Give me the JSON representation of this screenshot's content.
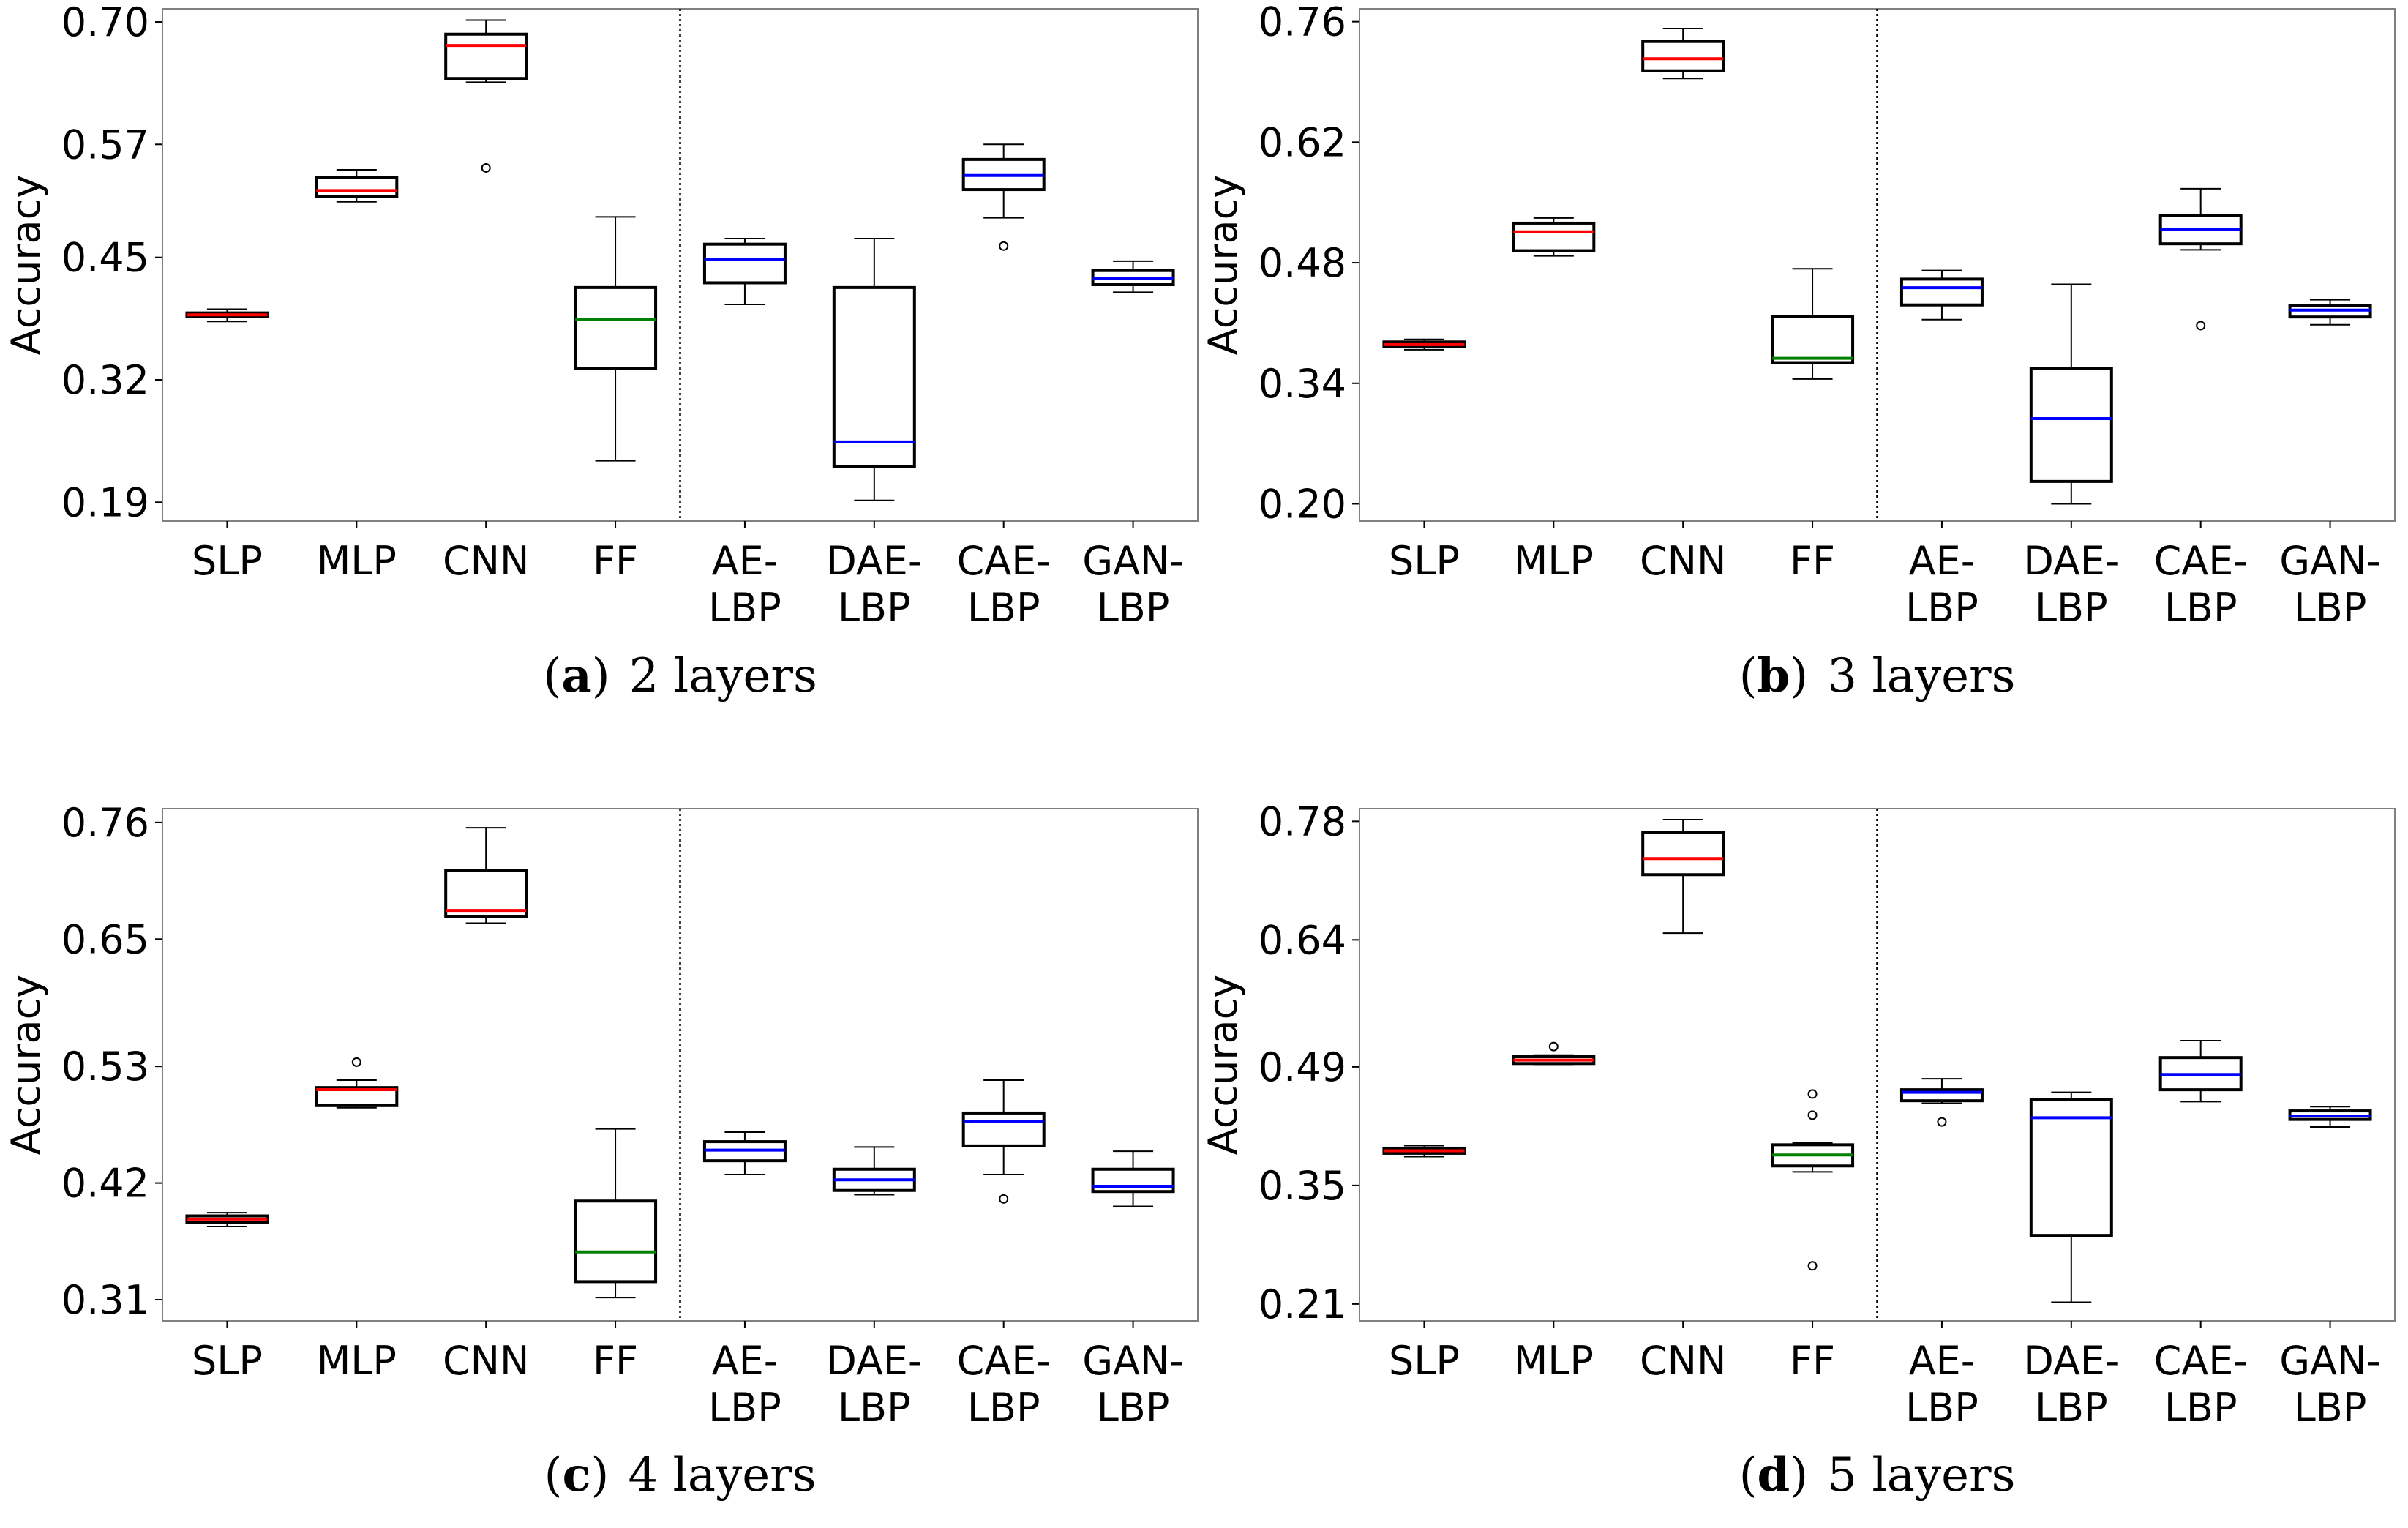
{
  "figure": {
    "categories": [
      "SLP",
      "MLP",
      "CNN",
      "FF",
      "AE-LBP",
      "DAE-LBP",
      "CAE-LBP",
      "GAN-LBP"
    ],
    "colors": {
      "red": "#ff0000",
      "green": "#008000",
      "blue": "#0000ff",
      "box": "#000000",
      "frame": "#808080",
      "divider": "#000000"
    }
  },
  "chart_data": [
    {
      "type": "box",
      "panel": "a",
      "caption_label": "a",
      "caption_text": "2 layers",
      "ylabel": "Accuracy",
      "ylim": [
        0.17,
        0.714
      ],
      "yticks": [
        0.19,
        0.32,
        0.45,
        0.57,
        0.7
      ],
      "ytick_labels": [
        "0.19",
        "0.32",
        "0.45",
        "0.57",
        "0.70"
      ],
      "xtick_labels": [
        [
          "SLP"
        ],
        [
          "MLP"
        ],
        [
          "CNN"
        ],
        [
          "FF"
        ],
        [
          "AE-",
          "LBP"
        ],
        [
          "DAE-",
          "LBP"
        ],
        [
          "CAE-",
          "LBP"
        ],
        [
          "GAN-",
          "LBP"
        ]
      ],
      "series": [
        {
          "name": "SLP",
          "min": 0.382,
          "q1": 0.387,
          "median": 0.389,
          "q3": 0.391,
          "max": 0.395,
          "median_color": "red",
          "outliers": []
        },
        {
          "name": "MLP",
          "min": 0.509,
          "q1": 0.515,
          "median": 0.521,
          "q3": 0.535,
          "max": 0.543,
          "median_color": "red",
          "outliers": []
        },
        {
          "name": "CNN",
          "min": 0.636,
          "q1": 0.64,
          "median": 0.675,
          "q3": 0.687,
          "max": 0.702,
          "median_color": "red",
          "outliers": [
            0.545
          ]
        },
        {
          "name": "FF",
          "min": 0.234,
          "q1": 0.332,
          "median": 0.384,
          "q3": 0.418,
          "max": 0.493,
          "median_color": "green",
          "outliers": []
        },
        {
          "name": "AE-LBP",
          "min": 0.4,
          "q1": 0.423,
          "median": 0.448,
          "q3": 0.464,
          "max": 0.47,
          "median_color": "blue",
          "outliers": []
        },
        {
          "name": "DAE-LBP",
          "min": 0.192,
          "q1": 0.228,
          "median": 0.254,
          "q3": 0.418,
          "max": 0.47,
          "median_color": "blue",
          "outliers": []
        },
        {
          "name": "CAE-LBP",
          "min": 0.492,
          "q1": 0.522,
          "median": 0.537,
          "q3": 0.554,
          "max": 0.57,
          "median_color": "blue",
          "outliers": [
            0.462
          ]
        },
        {
          "name": "GAN-LBP",
          "min": 0.413,
          "q1": 0.421,
          "median": 0.428,
          "q3": 0.436,
          "max": 0.446,
          "median_color": "blue",
          "outliers": []
        }
      ]
    },
    {
      "type": "box",
      "panel": "b",
      "caption_label": "b",
      "caption_text": "3 layers",
      "ylabel": "Accuracy",
      "ylim": [
        0.18,
        0.775
      ],
      "yticks": [
        0.2,
        0.34,
        0.48,
        0.62,
        0.76
      ],
      "ytick_labels": [
        "0.20",
        "0.34",
        "0.48",
        "0.62",
        "0.76"
      ],
      "xtick_labels": [
        [
          "SLP"
        ],
        [
          "MLP"
        ],
        [
          "CNN"
        ],
        [
          "FF"
        ],
        [
          "AE-",
          "LBP"
        ],
        [
          "DAE-",
          "LBP"
        ],
        [
          "CAE-",
          "LBP"
        ],
        [
          "GAN-",
          "LBP"
        ]
      ],
      "series": [
        {
          "name": "SLP",
          "min": 0.379,
          "q1": 0.383,
          "median": 0.385,
          "q3": 0.388,
          "max": 0.391,
          "median_color": "red",
          "outliers": []
        },
        {
          "name": "MLP",
          "min": 0.488,
          "q1": 0.494,
          "median": 0.516,
          "q3": 0.526,
          "max": 0.532,
          "median_color": "red",
          "outliers": []
        },
        {
          "name": "CNN",
          "min": 0.694,
          "q1": 0.703,
          "median": 0.717,
          "q3": 0.737,
          "max": 0.752,
          "median_color": "red",
          "outliers": []
        },
        {
          "name": "FF",
          "min": 0.345,
          "q1": 0.364,
          "median": 0.369,
          "q3": 0.418,
          "max": 0.473,
          "median_color": "green",
          "outliers": []
        },
        {
          "name": "AE-LBP",
          "min": 0.414,
          "q1": 0.431,
          "median": 0.451,
          "q3": 0.461,
          "max": 0.471,
          "median_color": "blue",
          "outliers": []
        },
        {
          "name": "DAE-LBP",
          "min": 0.2,
          "q1": 0.226,
          "median": 0.299,
          "q3": 0.357,
          "max": 0.455,
          "median_color": "blue",
          "outliers": []
        },
        {
          "name": "CAE-LBP",
          "min": 0.495,
          "q1": 0.502,
          "median": 0.519,
          "q3": 0.535,
          "max": 0.566,
          "median_color": "blue",
          "outliers": [
            0.407
          ]
        },
        {
          "name": "GAN-LBP",
          "min": 0.408,
          "q1": 0.417,
          "median": 0.425,
          "q3": 0.43,
          "max": 0.437,
          "median_color": "blue",
          "outliers": []
        }
      ]
    },
    {
      "type": "box",
      "panel": "c",
      "caption_label": "c",
      "caption_text": "4 layers",
      "ylabel": "Accuracy",
      "ylim": [
        0.29,
        0.773
      ],
      "yticks": [
        0.31,
        0.42,
        0.53,
        0.65,
        0.76
      ],
      "ytick_labels": [
        "0.31",
        "0.42",
        "0.53",
        "0.65",
        "0.76"
      ],
      "xtick_labels": [
        [
          "SLP"
        ],
        [
          "MLP"
        ],
        [
          "CNN"
        ],
        [
          "FF"
        ],
        [
          "AE-",
          "LBP"
        ],
        [
          "DAE-",
          "LBP"
        ],
        [
          "CAE-",
          "LBP"
        ],
        [
          "GAN-",
          "LBP"
        ]
      ],
      "series": [
        {
          "name": "SLP",
          "min": 0.379,
          "q1": 0.383,
          "median": 0.386,
          "q3": 0.389,
          "max": 0.392,
          "median_color": "red",
          "outliers": []
        },
        {
          "name": "MLP",
          "min": 0.491,
          "q1": 0.493,
          "median": 0.508,
          "q3": 0.51,
          "max": 0.517,
          "median_color": "red",
          "outliers": [
            0.534
          ]
        },
        {
          "name": "CNN",
          "min": 0.665,
          "q1": 0.671,
          "median": 0.677,
          "q3": 0.715,
          "max": 0.755,
          "median_color": "red",
          "outliers": []
        },
        {
          "name": "FF",
          "min": 0.312,
          "q1": 0.327,
          "median": 0.355,
          "q3": 0.403,
          "max": 0.471,
          "median_color": "green",
          "outliers": []
        },
        {
          "name": "AE-LBP",
          "min": 0.428,
          "q1": 0.441,
          "median": 0.451,
          "q3": 0.459,
          "max": 0.468,
          "median_color": "blue",
          "outliers": []
        },
        {
          "name": "DAE-LBP",
          "min": 0.409,
          "q1": 0.413,
          "median": 0.423,
          "q3": 0.433,
          "max": 0.454,
          "median_color": "blue",
          "outliers": []
        },
        {
          "name": "CAE-LBP",
          "min": 0.428,
          "q1": 0.455,
          "median": 0.478,
          "q3": 0.486,
          "max": 0.517,
          "median_color": "blue",
          "outliers": [
            0.405
          ]
        },
        {
          "name": "GAN-LBP",
          "min": 0.398,
          "q1": 0.412,
          "median": 0.417,
          "q3": 0.433,
          "max": 0.45,
          "median_color": "blue",
          "outliers": []
        }
      ]
    },
    {
      "type": "box",
      "panel": "d",
      "caption_label": "d",
      "caption_text": "5 layers",
      "ylabel": "Accuracy",
      "ylim": [
        0.19,
        0.795
      ],
      "yticks": [
        0.21,
        0.35,
        0.49,
        0.64,
        0.78
      ],
      "ytick_labels": [
        "0.21",
        "0.35",
        "0.49",
        "0.64",
        "0.78"
      ],
      "xtick_labels": [
        [
          "SLP"
        ],
        [
          "MLP"
        ],
        [
          "CNN"
        ],
        [
          "FF"
        ],
        [
          "AE-",
          "LBP"
        ],
        [
          "DAE-",
          "LBP"
        ],
        [
          "CAE-",
          "LBP"
        ],
        [
          "GAN-",
          "LBP"
        ]
      ],
      "series": [
        {
          "name": "SLP",
          "min": 0.384,
          "q1": 0.388,
          "median": 0.391,
          "q3": 0.394,
          "max": 0.397,
          "median_color": "red",
          "outliers": []
        },
        {
          "name": "MLP",
          "min": 0.493,
          "q1": 0.494,
          "median": 0.498,
          "q3": 0.502,
          "max": 0.504,
          "median_color": "red",
          "outliers": [
            0.514
          ]
        },
        {
          "name": "CNN",
          "min": 0.648,
          "q1": 0.717,
          "median": 0.736,
          "q3": 0.767,
          "max": 0.782,
          "median_color": "red",
          "outliers": []
        },
        {
          "name": "FF",
          "min": 0.366,
          "q1": 0.373,
          "median": 0.386,
          "q3": 0.398,
          "max": 0.4,
          "median_color": "green",
          "outliers": [
            0.255,
            0.433,
            0.458
          ]
        },
        {
          "name": "AE-LBP",
          "min": 0.447,
          "q1": 0.45,
          "median": 0.46,
          "q3": 0.463,
          "max": 0.476,
          "median_color": "blue",
          "outliers": [
            0.425
          ]
        },
        {
          "name": "DAE-LBP",
          "min": 0.212,
          "q1": 0.291,
          "median": 0.43,
          "q3": 0.451,
          "max": 0.46,
          "median_color": "blue",
          "outliers": []
        },
        {
          "name": "CAE-LBP",
          "min": 0.449,
          "q1": 0.463,
          "median": 0.481,
          "q3": 0.501,
          "max": 0.521,
          "median_color": "blue",
          "outliers": []
        },
        {
          "name": "GAN-LBP",
          "min": 0.419,
          "q1": 0.428,
          "median": 0.432,
          "q3": 0.438,
          "max": 0.443,
          "median_color": "blue",
          "outliers": []
        }
      ]
    }
  ]
}
